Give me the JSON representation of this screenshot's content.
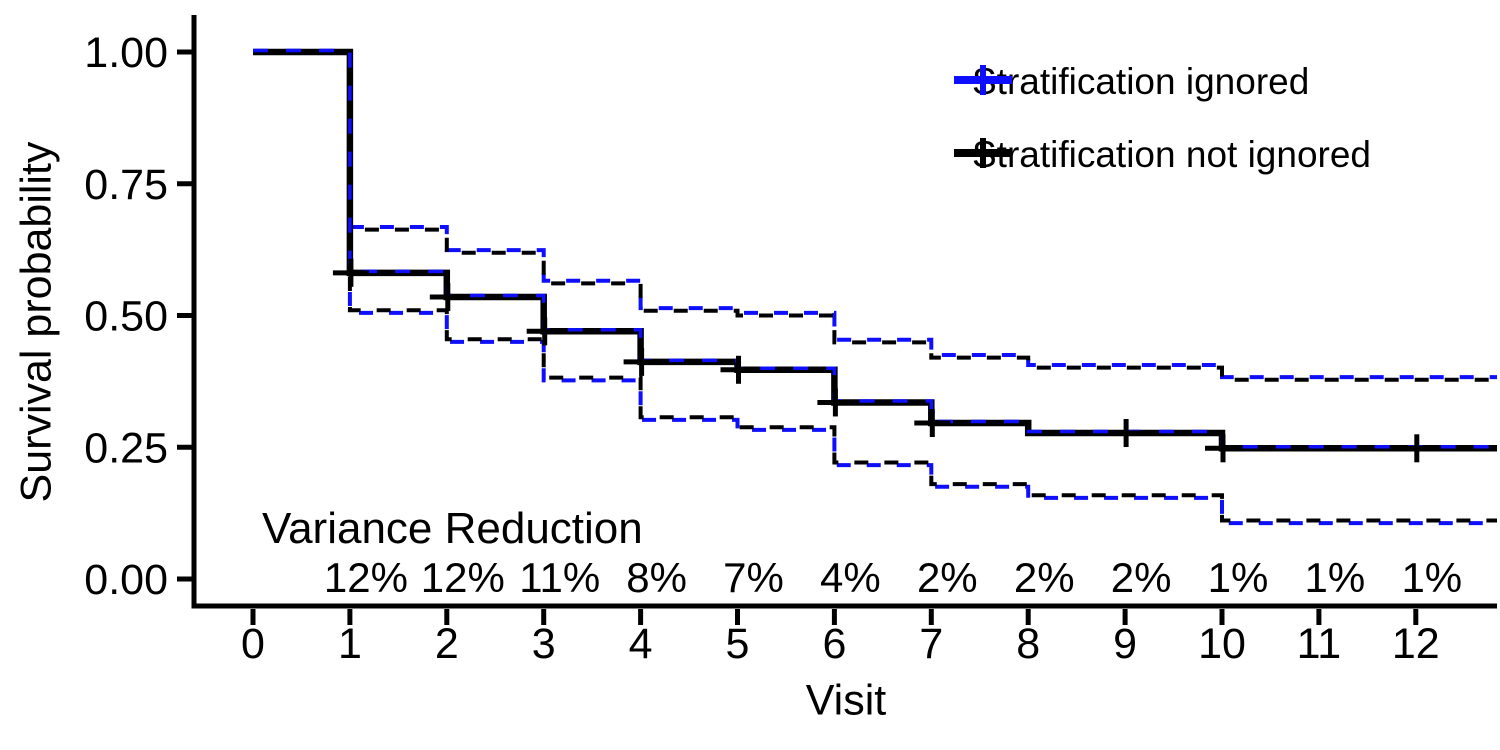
{
  "chart_data": {
    "type": "line",
    "subtype": "kaplan-meier-step-survival",
    "title": "",
    "xlabel": "Visit",
    "ylabel": "Survival probability",
    "xlim": [
      0,
      12.85
    ],
    "ylim": [
      0,
      1
    ],
    "grid": "off",
    "xticks": [
      "0",
      "1",
      "2",
      "3",
      "4",
      "5",
      "6",
      "7",
      "8",
      "9",
      "10",
      "11",
      "12"
    ],
    "yticks": [
      "0.00",
      "0.25",
      "0.50",
      "0.75",
      "1.00"
    ],
    "legend_position": "top-right",
    "series": [
      {
        "name": "Stratification ignored",
        "color": "#0f0fff",
        "line_style": "dashed",
        "estimate": [
          [
            0,
            1.0
          ],
          [
            1,
            0.581
          ],
          [
            2,
            0.535
          ],
          [
            3,
            0.47
          ],
          [
            4,
            0.412
          ],
          [
            5,
            0.397
          ],
          [
            6,
            0.335
          ],
          [
            7,
            0.296
          ],
          [
            8,
            0.277
          ],
          [
            10,
            0.248
          ]
        ],
        "upper_ci": [
          [
            1,
            0.668
          ],
          [
            2,
            0.624
          ],
          [
            3,
            0.566
          ],
          [
            4,
            0.514
          ],
          [
            5,
            0.505
          ],
          [
            6,
            0.454
          ],
          [
            7,
            0.425
          ],
          [
            8,
            0.406
          ],
          [
            10,
            0.383
          ]
        ],
        "lower_ci": [
          [
            1,
            0.505
          ],
          [
            2,
            0.45
          ],
          [
            3,
            0.377
          ],
          [
            4,
            0.302
          ],
          [
            5,
            0.283
          ],
          [
            6,
            0.216
          ],
          [
            7,
            0.175
          ],
          [
            8,
            0.154
          ],
          [
            10,
            0.106
          ]
        ]
      },
      {
        "name": "Stratification not ignored",
        "color": "#000000",
        "line_style": "solid",
        "estimate": [
          [
            0,
            1.0
          ],
          [
            1,
            0.581
          ],
          [
            2,
            0.535
          ],
          [
            3,
            0.47
          ],
          [
            4,
            0.412
          ],
          [
            5,
            0.397
          ],
          [
            6,
            0.335
          ],
          [
            7,
            0.296
          ],
          [
            8,
            0.277
          ],
          [
            10,
            0.248
          ]
        ],
        "upper_ci": [
          [
            1,
            0.663
          ],
          [
            2,
            0.619
          ],
          [
            3,
            0.561
          ],
          [
            4,
            0.509
          ],
          [
            5,
            0.5
          ],
          [
            6,
            0.449
          ],
          [
            7,
            0.42
          ],
          [
            8,
            0.401
          ],
          [
            10,
            0.378
          ]
        ],
        "lower_ci": [
          [
            1,
            0.51
          ],
          [
            2,
            0.455
          ],
          [
            3,
            0.382
          ],
          [
            4,
            0.307
          ],
          [
            5,
            0.288
          ],
          [
            6,
            0.221
          ],
          [
            7,
            0.18
          ],
          [
            8,
            0.159
          ],
          [
            10,
            0.111
          ]
        ]
      }
    ],
    "censor_marks": [
      [
        1,
        0.581
      ],
      [
        2,
        0.535
      ],
      [
        3,
        0.47
      ],
      [
        4,
        0.412
      ],
      [
        5,
        0.397
      ],
      [
        6,
        0.335
      ],
      [
        7,
        0.296
      ],
      [
        9,
        0.277
      ],
      [
        10,
        0.248
      ],
      [
        12,
        0.248
      ]
    ],
    "annotation": {
      "label": "Variance Reduction",
      "per_visit": [
        {
          "visit": 1,
          "value": "12%"
        },
        {
          "visit": 2,
          "value": "12%"
        },
        {
          "visit": 3,
          "value": "11%"
        },
        {
          "visit": 4,
          "value": "8%"
        },
        {
          "visit": 5,
          "value": "7%"
        },
        {
          "visit": 6,
          "value": "4%"
        },
        {
          "visit": 7,
          "value": "2%"
        },
        {
          "visit": 8,
          "value": "2%"
        },
        {
          "visit": 9,
          "value": "2%"
        },
        {
          "visit": 10,
          "value": "1%"
        },
        {
          "visit": 11,
          "value": "1%"
        },
        {
          "visit": 12,
          "value": "1%"
        }
      ]
    }
  }
}
